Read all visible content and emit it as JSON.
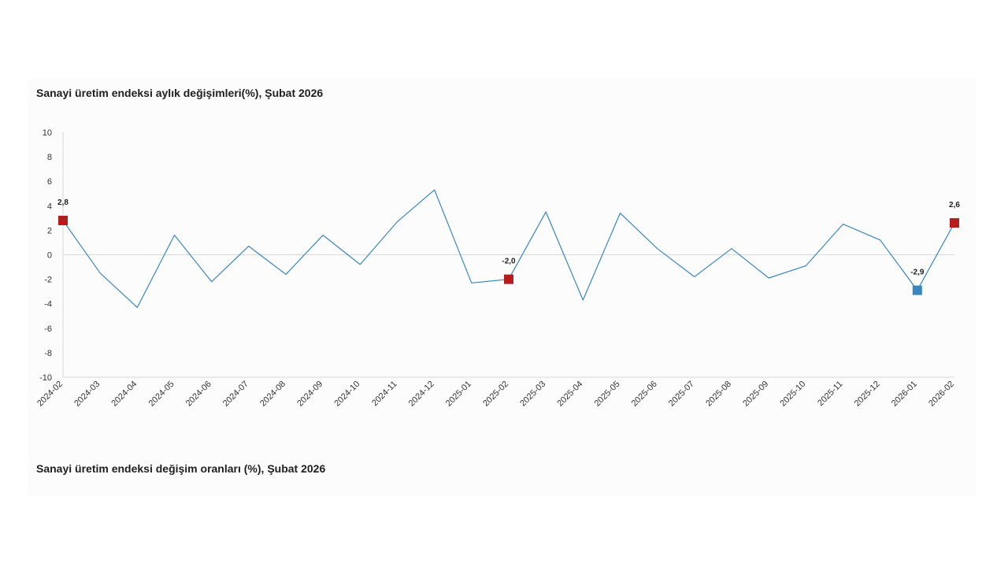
{
  "titles": {
    "chart1": "Sanayi üretim endeksi aylık değişimleri(%), Şubat 2026",
    "chart2": "Sanayi üretim endeksi değişim oranları (%), Şubat 2026"
  },
  "chart_data": {
    "type": "line",
    "title": "Sanayi üretim endeksi aylık değişimleri(%), Şubat 2026",
    "xlabel": "",
    "ylabel": "",
    "ylim": [
      -10,
      10
    ],
    "yticks": [
      10,
      8,
      6,
      4,
      2,
      0,
      -2,
      -4,
      -6,
      -8,
      -10
    ],
    "grid": false,
    "zero_line": true,
    "categories": [
      "2024-02",
      "2024-03",
      "2024-04",
      "2024-05",
      "2024-06",
      "2024-07",
      "2024-08",
      "2024-09",
      "2024-10",
      "2024-11",
      "2024-12",
      "2025-01",
      "2025-02",
      "2025-03",
      "2025-04",
      "2025-05",
      "2025-06",
      "2025-07",
      "2025-08",
      "2025-09",
      "2025-10",
      "2025-11",
      "2025-12",
      "2026-01",
      "2026-02"
    ],
    "series": [
      {
        "values": [
          2.8,
          -1.5,
          -4.3,
          1.6,
          -2.2,
          0.7,
          -1.6,
          1.6,
          -0.8,
          2.7,
          5.3,
          -2.3,
          -2.0,
          3.5,
          -3.7,
          3.4,
          0.5,
          -1.8,
          0.5,
          -1.9,
          -0.9,
          2.5,
          1.2,
          -2.9,
          2.6
        ],
        "color": "#3a87c0"
      }
    ],
    "highlighted_points": [
      {
        "category": "2024-02",
        "value": 2.8,
        "label": "2,8",
        "color": "#b71c1c"
      },
      {
        "category": "2025-02",
        "value": -2.0,
        "label": "-2,0",
        "color": "#b71c1c"
      },
      {
        "category": "2026-01",
        "value": -2.9,
        "label": "-2,9",
        "color": "#3a87c0"
      },
      {
        "category": "2026-02",
        "value": 2.6,
        "label": "2,6",
        "color": "#b71c1c"
      }
    ]
  }
}
